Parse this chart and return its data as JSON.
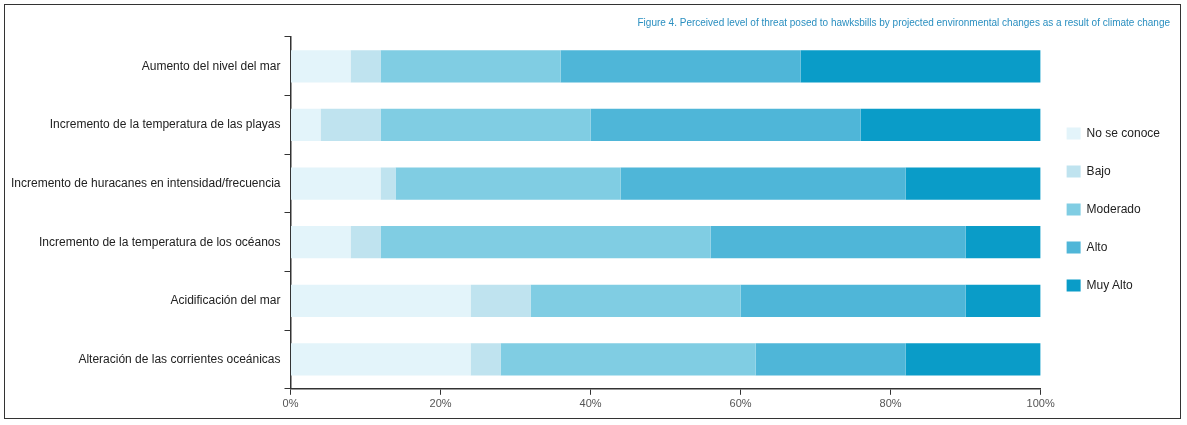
{
  "chart_data": {
    "type": "bar",
    "orientation": "horizontal",
    "stacked": true,
    "title": "Figure 4. Perceived level of threat posed to hawksbills by projected environmental changes as a result of climate change",
    "categories": [
      "Aumento del nivel del mar",
      "Incremento de la temperatura de las playas",
      "Incremento de huracanes en intensidad/frecuencia",
      "Incremento de la temperatura de los océanos",
      "Acidificación del mar",
      "Alteración de las corrientes oceánicas"
    ],
    "series": [
      {
        "name": "No se conoce",
        "color": "#e3f4fa",
        "values": [
          8,
          4,
          12,
          8,
          24,
          24
        ]
      },
      {
        "name": "Bajo",
        "color": "#bfe3ef",
        "values": [
          4,
          8,
          2,
          4,
          8,
          4
        ]
      },
      {
        "name": "Moderado",
        "color": "#80cde3",
        "values": [
          24,
          28,
          30,
          44,
          28,
          34
        ]
      },
      {
        "name": "Alto",
        "color": "#4fb6d8",
        "values": [
          32,
          36,
          38,
          34,
          30,
          20
        ]
      },
      {
        "name": "Muy Alto",
        "color": "#0a9cc8",
        "values": [
          32,
          24,
          18,
          10,
          10,
          18
        ]
      }
    ],
    "xlim": [
      0,
      100
    ],
    "xticks": [
      {
        "value": 0,
        "label": "0%"
      },
      {
        "value": 20,
        "label": "20%"
      },
      {
        "value": 40,
        "label": "40%"
      },
      {
        "value": 60,
        "label": "60%"
      },
      {
        "value": 80,
        "label": "80%"
      },
      {
        "value": 100,
        "label": "100%"
      }
    ],
    "grid": false,
    "legend": "right"
  }
}
